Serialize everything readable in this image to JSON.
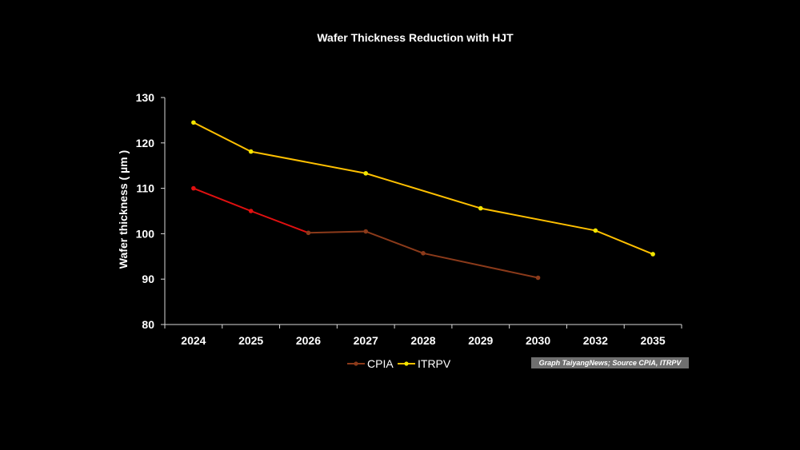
{
  "chart_data": {
    "type": "line",
    "title": "Wafer Thickness Reduction with HJT",
    "xlabel": "",
    "ylabel": "Wafer thickness ( µm )",
    "categories": [
      "2024",
      "2025",
      "2026",
      "2027",
      "2028",
      "2029",
      "2030",
      "2032",
      "2035"
    ],
    "ylim": [
      80,
      130
    ],
    "yticks": [
      80,
      90,
      100,
      110,
      120,
      130
    ],
    "grid": false,
    "legend_position": "bottom",
    "series": [
      {
        "name": "CPIA",
        "values": [
          110,
          105,
          100.2,
          100.5,
          95.7,
          null,
          90.3,
          null,
          null
        ],
        "color": "#8b3a1a",
        "segment_colors": [
          "#e01010",
          "#e01010",
          "#8b3a1a",
          "#8b3a1a",
          "#8b3a1a",
          "#8b3a1a"
        ]
      },
      {
        "name": "ITRPV",
        "values": [
          124.5,
          118.1,
          null,
          113.3,
          null,
          105.6,
          null,
          100.7,
          95.5
        ],
        "color": "#ffc000",
        "marker_color": "#f2e600"
      }
    ],
    "source_note": "Graph TaiyangNews; Source CPIA, ITRPV"
  }
}
